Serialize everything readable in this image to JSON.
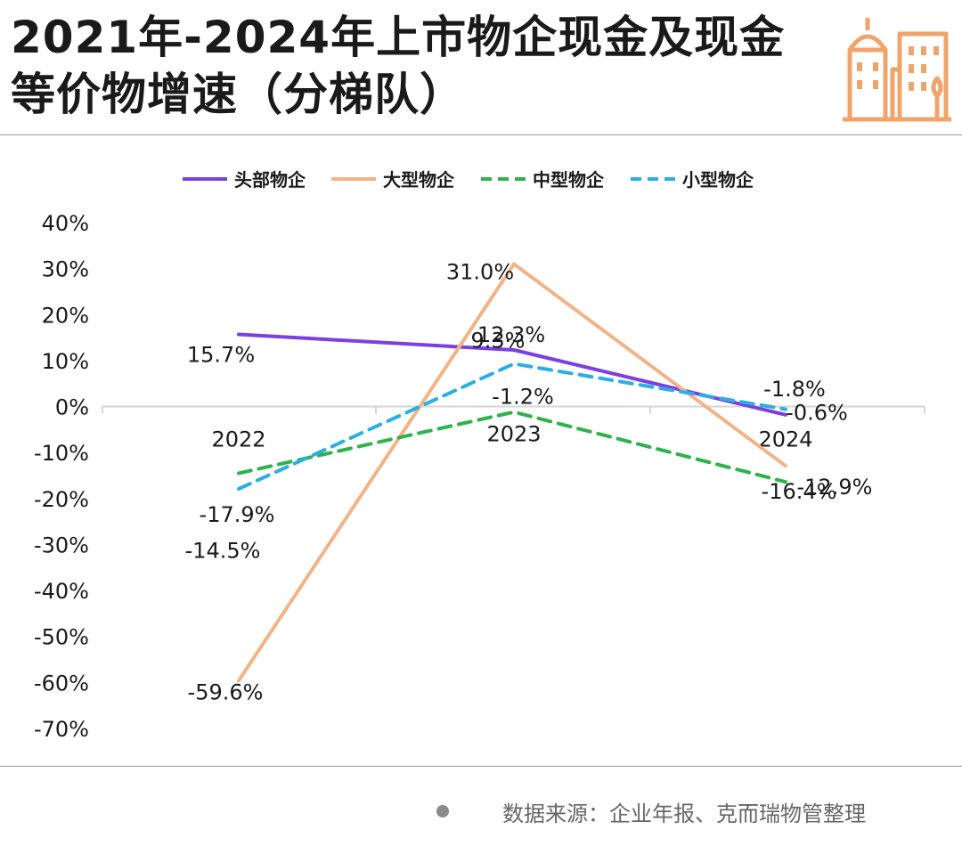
{
  "title": "2021年-2024年上市物企现金及现金等价物增速（分梯队）",
  "source": "数据来源：企业年报、克而瑞物管整理",
  "chart_data": {
    "type": "line",
    "title": "2021年-2024年上市物企现金及现金等价物增速（分梯队）",
    "xlabel": "",
    "ylabel": "",
    "categories": [
      "2022",
      "2023",
      "2024"
    ],
    "ylim": [
      -70,
      40
    ],
    "yticks": [
      40,
      30,
      20,
      10,
      0,
      -10,
      -20,
      -30,
      -40,
      -50,
      -60,
      -70
    ],
    "ytick_labels": [
      "40%",
      "30%",
      "20%",
      "10%",
      "0%",
      "-10%",
      "-20%",
      "-30%",
      "-40%",
      "-50%",
      "-60%",
      "-70%"
    ],
    "grid": false,
    "legend": "top",
    "series": [
      {
        "name": "头部物企",
        "values": [
          15.7,
          12.3,
          -1.8
        ],
        "labels": [
          "15.7%",
          "12.3%",
          "-1.8%"
        ],
        "color": "#7b3fe4",
        "dash": "solid"
      },
      {
        "name": "大型物企",
        "values": [
          -59.6,
          31.0,
          -12.9
        ],
        "labels": [
          "-59.6%",
          "31.0%",
          "-12.9%"
        ],
        "color": "#f0b487",
        "dash": "solid"
      },
      {
        "name": "中型物企",
        "values": [
          -14.5,
          -1.2,
          -16.4
        ],
        "labels": [
          "-14.5%",
          "-1.2%",
          "-16.4%"
        ],
        "color": "#2db34a",
        "dash": "dashed"
      },
      {
        "name": "小型物企",
        "values": [
          -17.9,
          9.3,
          -0.6
        ],
        "labels": [
          "-17.9%",
          "9.3%",
          "-0.6%"
        ],
        "color": "#2aaee3",
        "dash": "dashed"
      }
    ]
  },
  "colors": {
    "axis": "#d6d6d6",
    "logo": "#f0a46c",
    "text": "#1a1a1a"
  }
}
